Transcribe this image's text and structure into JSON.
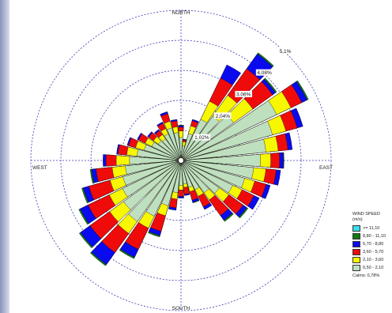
{
  "chart_data": {
    "type": "wind-rose",
    "compass": {
      "north": "NORTH",
      "south": "SOUTH",
      "east": "EAST",
      "west": "WEST"
    },
    "ring_labels": [
      "1,02%",
      "2,04%",
      "3,06%",
      "4,08%",
      "5,1%"
    ],
    "ring_values": [
      1.02,
      2.04,
      3.06,
      4.08,
      5.1
    ],
    "legend_title": [
      "WIND SPEED",
      "(m/s)"
    ],
    "bins": [
      {
        "label": ">= 11,10",
        "color": "#36e0e8"
      },
      {
        "label": "8,80 - 11,10",
        "color": "#107a10"
      },
      {
        "label": "5,70 - 8,80",
        "color": "#0a0aee"
      },
      {
        "label": "3,60 - 5,70",
        "color": "#f00b0b"
      },
      {
        "label": "2,10 - 3,60",
        "color": "#f7f702"
      },
      {
        "label": "0,50 - 2,10",
        "color": "#bfe0bf"
      }
    ],
    "calms": "Calms: 0,78%",
    "direction_step_deg": 10,
    "directions_deg": [
      0,
      10,
      20,
      30,
      40,
      50,
      60,
      70,
      80,
      90,
      100,
      110,
      120,
      130,
      140,
      150,
      160,
      170,
      180,
      190,
      200,
      210,
      220,
      230,
      240,
      250,
      260,
      270,
      280,
      290,
      300,
      310,
      320,
      330,
      340,
      350
    ],
    "cumulative_percent": [
      [
        0.78,
        1.0,
        1.13,
        1.18,
        1.2,
        1.2
      ],
      [
        0.5,
        0.64,
        0.7,
        0.72,
        0.73,
        0.73
      ],
      [
        0.95,
        1.22,
        1.4,
        1.45,
        1.45,
        1.45
      ],
      [
        1.55,
        2.23,
        3.1,
        3.6,
        3.6,
        3.6
      ],
      [
        1.85,
        2.72,
        3.83,
        4.45,
        4.5,
        4.5
      ],
      [
        2.2,
        3.0,
        3.83,
        3.95,
        4.0,
        4.0
      ],
      [
        3.6,
        4.14,
        4.55,
        4.75,
        4.8,
        4.8
      ],
      [
        3.23,
        3.7,
        4.1,
        4.3,
        4.3,
        4.3
      ],
      [
        2.9,
        3.32,
        3.65,
        3.8,
        3.8,
        3.8
      ],
      [
        2.7,
        3.05,
        3.35,
        3.48,
        3.5,
        3.5
      ],
      [
        2.48,
        2.9,
        3.25,
        3.4,
        3.4,
        3.4
      ],
      [
        2.25,
        2.6,
        3.0,
        3.15,
        3.15,
        3.15
      ],
      [
        1.95,
        2.3,
        2.75,
        2.95,
        2.95,
        2.95
      ],
      [
        1.6,
        2.0,
        2.6,
        2.75,
        2.8,
        2.8
      ],
      [
        1.35,
        1.65,
        2.3,
        2.5,
        2.55,
        2.55
      ],
      [
        1.1,
        1.35,
        1.75,
        1.85,
        1.85,
        1.85
      ],
      [
        0.95,
        1.1,
        1.4,
        1.48,
        1.5,
        1.5
      ],
      [
        0.8,
        0.92,
        1.15,
        1.2,
        1.2,
        1.2
      ],
      [
        0.85,
        1.0,
        1.22,
        1.28,
        1.28,
        1.28
      ],
      [
        1.1,
        1.32,
        1.62,
        1.7,
        1.7,
        1.7
      ],
      [
        1.6,
        1.95,
        2.5,
        2.65,
        2.7,
        2.7
      ],
      [
        2.1,
        2.55,
        3.35,
        3.65,
        3.7,
        3.7
      ],
      [
        2.55,
        3.05,
        3.85,
        4.35,
        4.4,
        4.4
      ],
      [
        2.4,
        2.98,
        3.8,
        4.2,
        4.25,
        4.25
      ],
      [
        2.2,
        2.7,
        3.5,
        3.8,
        3.85,
        3.85
      ],
      [
        2.05,
        2.5,
        3.25,
        3.45,
        3.5,
        3.5
      ],
      [
        1.9,
        2.35,
        2.9,
        3.05,
        3.1,
        3.1
      ],
      [
        1.75,
        2.2,
        2.55,
        2.65,
        2.65,
        2.65
      ],
      [
        1.5,
        1.85,
        2.15,
        2.2,
        2.2,
        2.2
      ],
      [
        1.3,
        1.6,
        1.85,
        1.9,
        1.9,
        1.9
      ],
      [
        1.1,
        1.35,
        1.6,
        1.65,
        1.65,
        1.65
      ],
      [
        0.95,
        1.15,
        1.35,
        1.4,
        1.4,
        1.4
      ],
      [
        0.9,
        1.08,
        1.25,
        1.3,
        1.3,
        1.3
      ],
      [
        1.0,
        1.2,
        1.4,
        1.45,
        1.45,
        1.45
      ],
      [
        1.15,
        1.38,
        1.65,
        1.72,
        1.72,
        1.72
      ],
      [
        0.95,
        1.15,
        1.35,
        1.4,
        1.4,
        1.4
      ]
    ],
    "grid": true
  }
}
